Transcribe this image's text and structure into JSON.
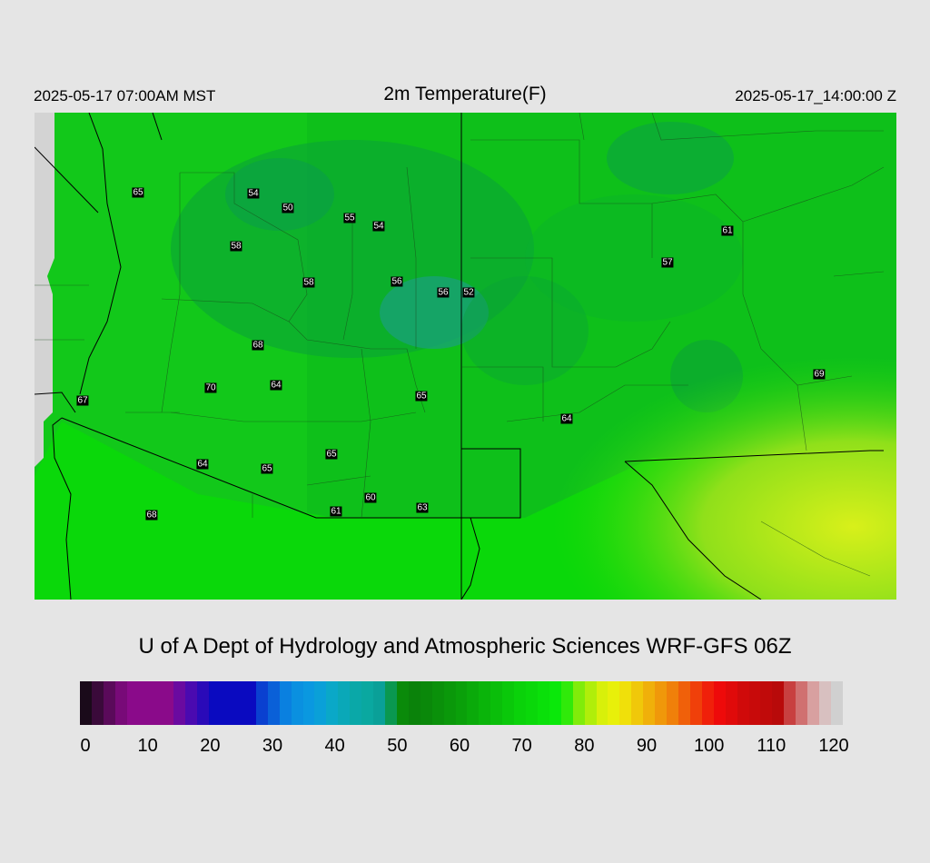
{
  "header": {
    "local_time": "2025-05-17 07:00AM MST",
    "title": "2m Temperature(F)",
    "valid_time": "2025-05-17_14:00:00 Z"
  },
  "stations": [
    "65",
    "54",
    "50",
    "55",
    "54",
    "58",
    "58",
    "56",
    "56",
    "52",
    "61",
    "57",
    "68",
    "70",
    "64",
    "65",
    "67",
    "69",
    "64",
    "64",
    "65",
    "65",
    "60",
    "61",
    "63",
    "68"
  ],
  "credit": "U of A Dept of Hydrology and Atmospheric Sciences WRF-GFS 06Z",
  "colorbar": {
    "ticks": [
      "0",
      "10",
      "20",
      "30",
      "40",
      "50",
      "60",
      "70",
      "80",
      "90",
      "100",
      "110",
      "120"
    ],
    "colors": [
      "#1a0a1a",
      "#3a0a3a",
      "#5a0a5a",
      "#780a78",
      "#8a0a8a",
      "#8a0a8a",
      "#8a0a8a",
      "#8a0a8a",
      "#6a0aa0",
      "#4a0ab0",
      "#2a0ab8",
      "#0a0ac0",
      "#0a0ac0",
      "#0a0ac0",
      "#0a0ac0",
      "#0a40d0",
      "#0a60d8",
      "#0a80e0",
      "#0a90e0",
      "#0a98e0",
      "#0aa0d8",
      "#0aa8c8",
      "#0aa8b8",
      "#0aa8a8",
      "#0aa8a0",
      "#0aa098",
      "#0a9850",
      "#0a8a0a",
      "#0a820a",
      "#0a880a",
      "#0a900a",
      "#0a980a",
      "#0aa00a",
      "#0aaa0a",
      "#0ab40a",
      "#0abe0a",
      "#0ac80a",
      "#0ad20a",
      "#0ad80a",
      "#0ae00a",
      "#0ae80a",
      "#30ea0a",
      "#80ec0a",
      "#b0ee0a",
      "#d8f00a",
      "#e8f00a",
      "#f0e00a",
      "#f0c80a",
      "#f0b00a",
      "#f0980a",
      "#f0800a",
      "#f0600a",
      "#f0400a",
      "#f0200a",
      "#ee0a0a",
      "#e00a0a",
      "#d00a0a",
      "#c80a0a",
      "#c00a0a",
      "#b80a0a",
      "#c84040",
      "#d07070",
      "#d8a0a0",
      "#d8c0c0",
      "#d0d0d0"
    ]
  }
}
